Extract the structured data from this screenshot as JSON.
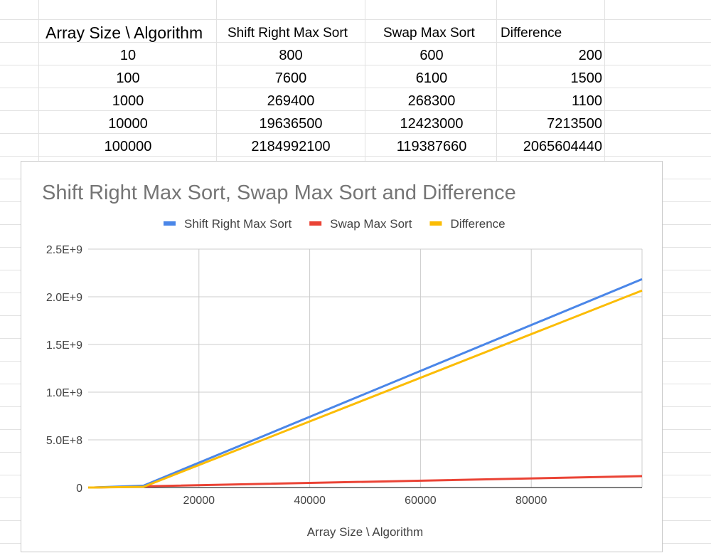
{
  "sheet": {
    "headers": [
      "Array Size \\ Algorithm",
      "Shift Right Max Sort",
      "Swap Max Sort",
      "Difference"
    ],
    "rows": [
      [
        "10",
        "800",
        "600",
        "200"
      ],
      [
        "100",
        "7600",
        "6100",
        "1500"
      ],
      [
        "1000",
        "269400",
        "268300",
        "1100"
      ],
      [
        "10000",
        "19636500",
        "12423000",
        "7213500"
      ],
      [
        "100000",
        "2184992100",
        "119387660",
        "2065604440"
      ]
    ]
  },
  "chart_data": {
    "type": "line",
    "title": "Shift Right Max Sort, Swap Max Sort and Difference",
    "xlabel": "Array Size \\ Algorithm",
    "ylabel": "",
    "x": [
      10,
      100,
      1000,
      10000,
      100000
    ],
    "xlim": [
      0,
      100000
    ],
    "ylim": [
      0,
      2500000000
    ],
    "x_ticks": [
      20000,
      40000,
      60000,
      80000
    ],
    "x_tick_labels": [
      "20000",
      "40000",
      "60000",
      "80000"
    ],
    "y_ticks": [
      0,
      500000000,
      1000000000,
      1500000000,
      2000000000,
      2500000000
    ],
    "y_tick_labels": [
      "0",
      "5.0E+8",
      "1.0E+9",
      "1.5E+9",
      "2.0E+9",
      "2.5E+9"
    ],
    "grid": true,
    "legend": "top",
    "series": [
      {
        "name": "Shift Right Max Sort",
        "color": "#4a86e8",
        "values": [
          800,
          7600,
          269400,
          19636500,
          2184992100
        ]
      },
      {
        "name": "Swap Max Sort",
        "color": "#ea4335",
        "values": [
          600,
          6100,
          268300,
          12423000,
          119387660
        ]
      },
      {
        "name": "Difference",
        "color": "#fbbc04",
        "values": [
          200,
          1500,
          1100,
          7213500,
          2065604440
        ]
      }
    ]
  }
}
